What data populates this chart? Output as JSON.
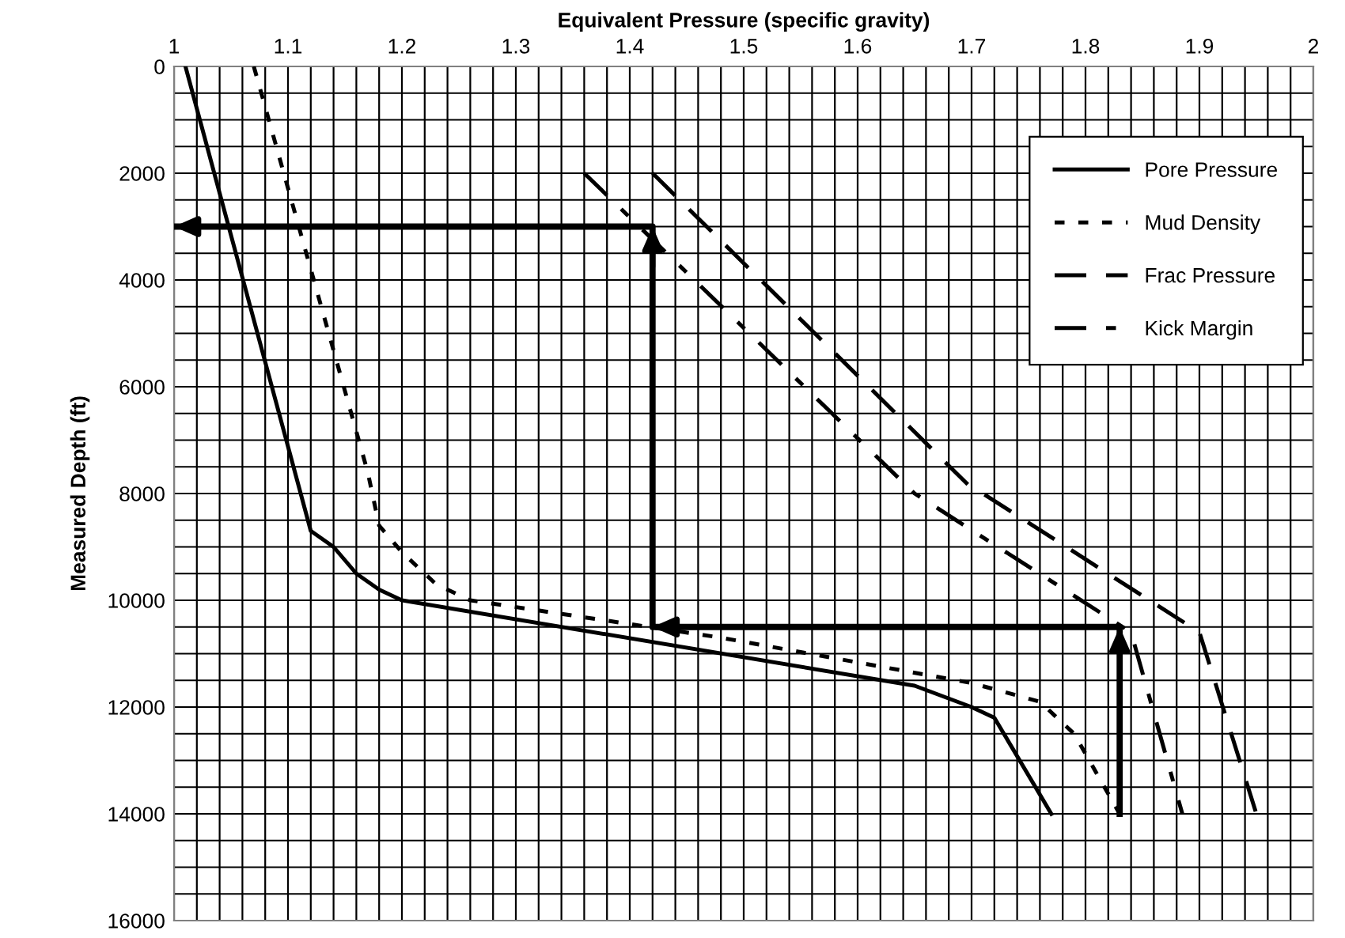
{
  "chart_data": {
    "type": "line",
    "xlabel": "Equivalent Pressure (specific gravity)",
    "ylabel": "Measured Depth (ft)",
    "xlim": [
      1,
      2
    ],
    "ylim": [
      16000,
      0
    ],
    "xticks": [
      1,
      {
        "value": 1.02,
        "label": null
      },
      {
        "value": 1.04,
        "label": null
      },
      {
        "value": 1.06,
        "label": null
      },
      {
        "value": 1.08,
        "label": null
      },
      1.1,
      {
        "value": 1.12,
        "label": null
      },
      {
        "value": 1.14,
        "label": null
      },
      {
        "value": 1.16,
        "label": null
      },
      {
        "value": 1.18,
        "label": null
      },
      1.2,
      {
        "value": 1.22,
        "label": null
      },
      {
        "value": 1.24,
        "label": null
      },
      {
        "value": 1.26,
        "label": null
      },
      {
        "value": 1.28,
        "label": null
      },
      1.3,
      {
        "value": 1.32,
        "label": null
      },
      {
        "value": 1.34,
        "label": null
      },
      {
        "value": 1.36,
        "label": null
      },
      {
        "value": 1.38,
        "label": null
      },
      1.4,
      {
        "value": 1.42,
        "label": null
      },
      {
        "value": 1.44,
        "label": null
      },
      {
        "value": 1.46,
        "label": null
      },
      {
        "value": 1.48,
        "label": null
      },
      1.5,
      {
        "value": 1.52,
        "label": null
      },
      {
        "value": 1.54,
        "label": null
      },
      {
        "value": 1.56,
        "label": null
      },
      {
        "value": 1.58,
        "label": null
      },
      1.6,
      {
        "value": 1.62,
        "label": null
      },
      {
        "value": 1.64,
        "label": null
      },
      {
        "value": 1.66,
        "label": null
      },
      {
        "value": 1.68,
        "label": null
      },
      1.7,
      {
        "value": 1.72,
        "label": null
      },
      {
        "value": 1.74,
        "label": null
      },
      {
        "value": 1.76,
        "label": null
      },
      {
        "value": 1.78,
        "label": null
      },
      1.8,
      {
        "value": 1.82,
        "label": null
      },
      {
        "value": 1.84,
        "label": null
      },
      {
        "value": 1.86,
        "label": null
      },
      {
        "value": 1.88,
        "label": null
      },
      1.9,
      {
        "value": 1.92,
        "label": null
      },
      {
        "value": 1.94,
        "label": null
      },
      {
        "value": 1.96,
        "label": null
      },
      {
        "value": 1.98,
        "label": null
      },
      2
    ],
    "yticks": [
      0,
      {
        "value": 500,
        "label": null
      },
      {
        "value": 1000,
        "label": null
      },
      {
        "value": 1500,
        "label": null
      },
      2000,
      {
        "value": 2500,
        "label": null
      },
      {
        "value": 3000,
        "label": null
      },
      {
        "value": 3500,
        "label": null
      },
      4000,
      {
        "value": 4500,
        "label": null
      },
      {
        "value": 5000,
        "label": null
      },
      {
        "value": 5500,
        "label": null
      },
      6000,
      {
        "value": 6500,
        "label": null
      },
      {
        "value": 7000,
        "label": null
      },
      {
        "value": 7500,
        "label": null
      },
      8000,
      {
        "value": 8500,
        "label": null
      },
      {
        "value": 9000,
        "label": null
      },
      {
        "value": 9500,
        "label": null
      },
      10000,
      {
        "value": 10500,
        "label": null
      },
      {
        "value": 11000,
        "label": null
      },
      {
        "value": 11500,
        "label": null
      },
      12000,
      {
        "value": 12500,
        "label": null
      },
      {
        "value": 13000,
        "label": null
      },
      {
        "value": 13500,
        "label": null
      },
      14000,
      {
        "value": 14500,
        "label": null
      },
      {
        "value": 15000,
        "label": null
      },
      {
        "value": 15500,
        "label": null
      },
      16000
    ],
    "grid": true,
    "legend": "top right",
    "marker": "none",
    "series": [
      {
        "name": "Pore Pressure",
        "color": "#000000",
        "line_style": "solid",
        "x": [
          1.01,
          1.12,
          1.14,
          1.16,
          1.18,
          1.2,
          1.65,
          1.7,
          1.72,
          1.77
        ],
        "values": [
          0,
          8700,
          9000,
          9500,
          9800,
          10000,
          11600,
          12000,
          12200,
          14000
        ]
      },
      {
        "name": "Mud Density",
        "color": "#000000",
        "line_style": "dotted",
        "x": [
          1.07,
          1.17,
          1.18,
          1.2,
          1.23,
          1.26,
          1.48,
          1.7,
          1.76,
          1.79,
          1.83
        ],
        "values": [
          0,
          7600,
          8600,
          9100,
          9700,
          10000,
          10700,
          11550,
          11900,
          12500,
          14000
        ]
      },
      {
        "name": "Frac Pressure",
        "color": "#000000",
        "line_style": "dashed",
        "x": [
          1.42,
          1.7,
          1.71,
          1.9,
          1.95
        ],
        "values": [
          2000,
          7900,
          8000,
          10600,
          14000
        ]
      },
      {
        "name": "Kick Margin",
        "color": "#000000",
        "line_style": "dashdot",
        "x": [
          1.36,
          1.65,
          1.84,
          1.885
        ],
        "values": [
          2000,
          8000,
          10600,
          14000
        ]
      },
      {
        "type": "line",
        "color": "#000000",
        "line_style": "solid",
        "x": [
          1.83,
          1.83,
          1.42,
          1.42,
          1.0
        ],
        "values": [
          14000,
          10500,
          10500,
          3000,
          3000
        ]
      }
    ]
  }
}
